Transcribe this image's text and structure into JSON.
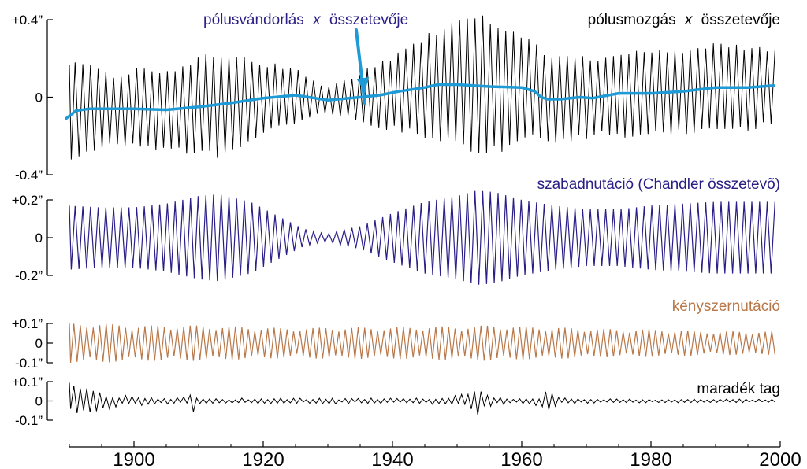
{
  "chart_data": {
    "type": "line",
    "x_axis": {
      "range": [
        1890,
        2000
      ],
      "ticks": [
        1900,
        1920,
        1940,
        1960,
        1980,
        2000
      ],
      "tick_labels": [
        "1900",
        "1920",
        "1940",
        "1960",
        "1980",
        "2000"
      ]
    },
    "panels": [
      {
        "id": "polar-motion",
        "title_parts": [
          "pólusmozgás ",
          "x",
          " összetevője"
        ],
        "color": "#000000",
        "ylim": [
          -0.4,
          0.4
        ],
        "y_ticks": [
          0.4,
          0,
          -0.4
        ],
        "y_tick_labels": [
          "+0.4”",
          "0",
          "-0.4”"
        ],
        "series": [
          {
            "title_parts": [
              "pólusmozgás ",
              "x",
              " összetevője"
            ],
            "color": "#000000",
            "period_years": 1.19,
            "envelope": {
              "x": [
                1889.5,
                1893,
                1897,
                1901,
                1905,
                1909,
                1913,
                1917,
                1921,
                1925,
                1929,
                1933,
                1937,
                1941,
                1945,
                1949,
                1953,
                1957,
                1961,
                1965,
                1969,
                1973,
                1977,
                1981,
                1985,
                1989,
                1993,
                1997,
                1999
              ],
              "y": [
                0.28,
                0.23,
                0.18,
                0.22,
                0.21,
                0.26,
                0.28,
                0.24,
                0.18,
                0.15,
                0.07,
                0.1,
                0.16,
                0.21,
                0.27,
                0.32,
                0.39,
                0.34,
                0.27,
                0.23,
                0.22,
                0.21,
                0.24,
                0.23,
                0.23,
                0.24,
                0.23,
                0.22,
                0.2
              ]
            }
          },
          {
            "title_parts": [
              "pólusvándorlás ",
              "x",
              " összetevője"
            ],
            "color": "#1e9ad6",
            "x": [
              1889.5,
              1891,
              1893,
              1897,
              1900,
              1905,
              1910,
              1915,
              1920,
              1925,
              1930,
              1935,
              1938,
              1941,
              1943,
              1945,
              1947,
              1950,
              1955,
              1960,
              1962,
              1963,
              1964,
              1966,
              1969,
              1971,
              1975,
              1980,
              1985,
              1990,
              1995,
              1999
            ],
            "y": [
              -0.11,
              -0.07,
              -0.06,
              -0.06,
              -0.06,
              -0.065,
              -0.05,
              -0.03,
              -0.005,
              0.01,
              -0.015,
              0.0,
              0.01,
              0.03,
              0.04,
              0.05,
              0.065,
              0.065,
              0.055,
              0.05,
              0.03,
              0.0,
              -0.01,
              -0.01,
              0.0,
              -0.005,
              0.02,
              0.02,
              0.03,
              0.05,
              0.05,
              0.06
            ]
          }
        ],
        "annotation": {
          "points_to_year": 1935.7,
          "points_to_value": 0.01
        }
      },
      {
        "id": "free-nutation",
        "title": "szabadnutáció (Chandler összetevõ)",
        "color": "#2a1e86",
        "ylim": [
          -0.2,
          0.2
        ],
        "y_ticks": [
          0.2,
          0,
          -0.2
        ],
        "y_tick_labels": [
          "+0.2”",
          "0",
          "-0.2”"
        ],
        "series": [
          {
            "title": "szabadnutáció (Chandler összetevõ)",
            "color": "#2a1e86",
            "period_years": 1.19,
            "envelope": {
              "x": [
                1889.5,
                1895,
                1900,
                1905,
                1910,
                1913,
                1918,
                1922,
                1926,
                1928,
                1930,
                1932,
                1935,
                1940,
                1945,
                1950,
                1953,
                1956,
                1960,
                1965,
                1970,
                1975,
                1980,
                1985,
                1990,
                1995,
                1999
              ],
              "y": [
                0.17,
                0.16,
                0.16,
                0.18,
                0.22,
                0.23,
                0.19,
                0.12,
                0.05,
                0.03,
                0.02,
                0.04,
                0.06,
                0.13,
                0.19,
                0.22,
                0.25,
                0.24,
                0.2,
                0.17,
                0.15,
                0.15,
                0.17,
                0.18,
                0.19,
                0.19,
                0.19
              ]
            }
          }
        ]
      },
      {
        "id": "forced-nutation",
        "title": "kényszernutáció",
        "color": "#b8784a",
        "ylim": [
          -0.1,
          0.1
        ],
        "y_ticks": [
          0.1,
          0,
          -0.1
        ],
        "y_tick_labels": [
          "+0.1”",
          "0",
          "-0.1”"
        ],
        "series": [
          {
            "title": "kényszernutáció",
            "color": "#b8784a",
            "period_years": 1.0,
            "beat_period_years": 6.4,
            "envelope": {
              "x": [
                1889.5,
                1895,
                1900,
                1905,
                1910,
                1915,
                1920,
                1925,
                1930,
                1935,
                1940,
                1945,
                1950,
                1955,
                1960,
                1965,
                1970,
                1975,
                1980,
                1985,
                1990,
                1995,
                1999
              ],
              "y": [
                0.1,
                0.1,
                0.09,
                0.09,
                0.09,
                0.085,
                0.08,
                0.075,
                0.08,
                0.08,
                0.08,
                0.085,
                0.085,
                0.09,
                0.085,
                0.08,
                0.075,
                0.07,
                0.07,
                0.065,
                0.06,
                0.06,
                0.06
              ]
            }
          }
        ]
      },
      {
        "id": "residual",
        "title": "maradék tag",
        "color": "#000000",
        "ylim": [
          -0.1,
          0.1
        ],
        "y_ticks": [
          0.1,
          0,
          -0.1
        ],
        "y_tick_labels": [
          "+0.1”",
          "0",
          "-0.1”"
        ],
        "series": [
          {
            "title": "maradék tag",
            "color": "#000000",
            "period_years": 1.0,
            "envelope": {
              "x": [
                1889.5,
                1892,
                1895,
                1898,
                1902,
                1906,
                1908,
                1909,
                1910,
                1912,
                1920,
                1930,
                1940,
                1948,
                1951,
                1953,
                1954,
                1956,
                1960,
                1963,
                1964,
                1966,
                1970,
                1980,
                1990,
                1999
              ],
              "y": [
                0.11,
                0.07,
                0.05,
                0.03,
                0.025,
                0.02,
                0.02,
                0.07,
                0.02,
                0.015,
                0.015,
                0.015,
                0.015,
                0.02,
                0.04,
                0.09,
                0.04,
                0.02,
                0.015,
                0.03,
                0.09,
                0.02,
                0.015,
                0.01,
                0.01,
                0.01
              ]
            }
          }
        ]
      }
    ]
  }
}
